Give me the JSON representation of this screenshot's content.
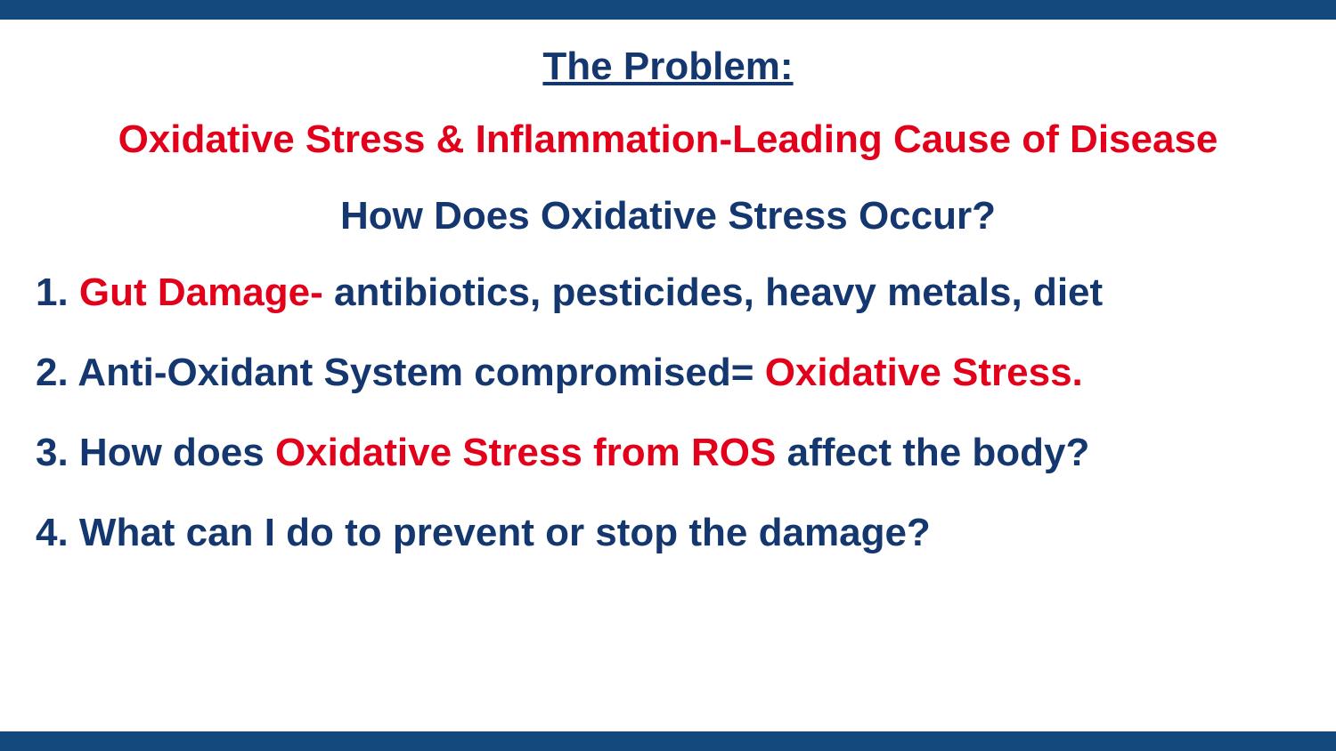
{
  "colors": {
    "bar": "#13497d",
    "navy": "#13376e",
    "red": "#e2001a",
    "background": "#ffffff"
  },
  "typography": {
    "title_fontsize": 44,
    "subtitle_fontsize": 44,
    "question_fontsize": 44,
    "list_fontsize": 44,
    "font_family": "Arial"
  },
  "title": "The Problem:",
  "subtitle": "Oxidative Stress & Inflammation-Leading Cause of Disease",
  "question": "How Does Oxidative Stress Occur?",
  "items": [
    {
      "num": "1.",
      "segments": [
        {
          "text": " Gut Damage-",
          "color": "red"
        },
        {
          "text": " antibiotics, pesticides, heavy metals, diet",
          "color": "navy"
        }
      ]
    },
    {
      "num": "2.",
      "segments": [
        {
          "text": " Anti-Oxidant System compromised= ",
          "color": "navy"
        },
        {
          "text": "Oxidative Stress.",
          "color": "red"
        }
      ]
    },
    {
      "num": "3.",
      "segments": [
        {
          "text": " How does ",
          "color": "navy"
        },
        {
          "text": "Oxidative Stress from ROS",
          "color": "red"
        },
        {
          "text": " affect the body?",
          "color": "navy"
        }
      ]
    },
    {
      "num": "4.",
      "segments": [
        {
          "text": " What can I do to prevent or stop the damage?",
          "color": "navy"
        }
      ]
    }
  ]
}
